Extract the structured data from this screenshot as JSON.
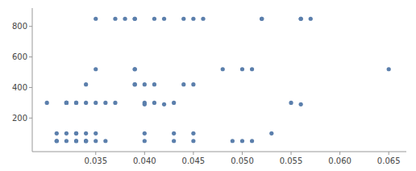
{
  "chart_data": {
    "type": "scatter",
    "x": [
      0.03,
      0.031,
      0.031,
      0.031,
      0.032,
      0.032,
      0.032,
      0.032,
      0.032,
      0.033,
      0.033,
      0.033,
      0.033,
      0.033,
      0.033,
      0.034,
      0.034,
      0.034,
      0.034,
      0.034,
      0.034,
      0.035,
      0.035,
      0.035,
      0.035,
      0.035,
      0.036,
      0.036,
      0.037,
      0.037,
      0.038,
      0.039,
      0.039,
      0.039,
      0.039,
      0.039,
      0.039,
      0.04,
      0.04,
      0.04,
      0.04,
      0.04,
      0.041,
      0.041,
      0.041,
      0.042,
      0.042,
      0.043,
      0.043,
      0.043,
      0.044,
      0.044,
      0.045,
      0.045,
      0.045,
      0.045,
      0.046,
      0.048,
      0.049,
      0.05,
      0.05,
      0.051,
      0.051,
      0.052,
      0.052,
      0.053,
      0.055,
      0.056,
      0.056,
      0.056,
      0.057,
      0.065
    ],
    "y": [
      300,
      100,
      50,
      50,
      300,
      300,
      300,
      100,
      50,
      300,
      300,
      100,
      100,
      50,
      50,
      420,
      300,
      100,
      50,
      50,
      50,
      850,
      520,
      300,
      100,
      50,
      300,
      50,
      850,
      300,
      850,
      850,
      850,
      520,
      520,
      420,
      420,
      420,
      300,
      290,
      100,
      50,
      850,
      420,
      300,
      850,
      290,
      300,
      100,
      50,
      850,
      420,
      850,
      420,
      100,
      50,
      850,
      520,
      50,
      520,
      50,
      520,
      50,
      850,
      850,
      100,
      300,
      850,
      850,
      290,
      850,
      520
    ],
    "color": "#5b7fac",
    "xlim": [
      0.0285,
      0.0668
    ],
    "ylim": [
      -20,
      920
    ],
    "xticks": [
      0.035,
      {
        "value": 0.04,
        "label": "0.040"
      },
      0.045,
      {
        "value": 0.05,
        "label": "0.050"
      },
      0.055,
      {
        "value": 0.06,
        "label": "0.060"
      },
      0.065
    ],
    "yticks": [
      200,
      400,
      600,
      800
    ],
    "grid": false
  }
}
